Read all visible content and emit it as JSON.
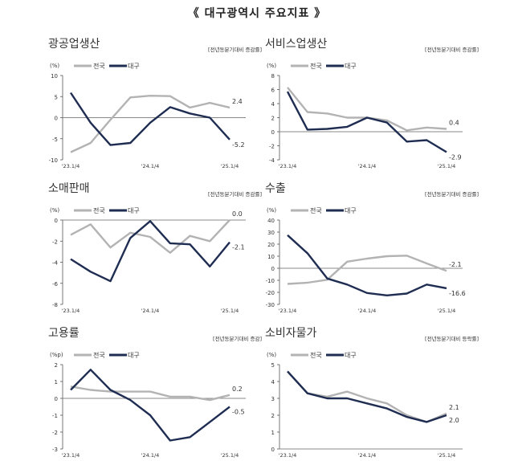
{
  "page_title": "《 대구광역시 주요지표 》",
  "colors": {
    "national": "#b3b3b3",
    "daegu": "#1f2d52",
    "zero_line": "#888888",
    "axis": "#555555"
  },
  "chart_data": [
    {
      "type": "line",
      "title": "광공업생산",
      "note": "[전년동분기대비 증감률]",
      "unit": "(%)",
      "ylim": [
        -10,
        10
      ],
      "yticks": [
        -10,
        -5,
        0,
        5,
        10
      ],
      "x_tick_labels": [
        "'23.1/4",
        "'24.1/4",
        "'25.1/4"
      ],
      "x_tick_index": [
        0,
        4,
        8
      ],
      "n_points": 9,
      "legend": [
        "전국",
        "대구"
      ],
      "series": [
        {
          "name": "전국",
          "values": [
            -8.2,
            -6.0,
            -0.5,
            4.8,
            5.2,
            5.1,
            2.4,
            3.5,
            2.4
          ],
          "end_label": "2.4"
        },
        {
          "name": "대구",
          "values": [
            5.9,
            -1.2,
            -6.5,
            -6.0,
            -1.2,
            2.5,
            1.0,
            0.0,
            -5.2
          ],
          "end_label": "-5.2"
        }
      ]
    },
    {
      "type": "line",
      "title": "서비스업생산",
      "note": "[전년동분기대비 증감률]",
      "unit": "(%)",
      "ylim": [
        -4,
        8
      ],
      "yticks": [
        -4,
        -2,
        0,
        2,
        4,
        6,
        8
      ],
      "x_tick_labels": [
        "'23.1/4",
        "'24.1/4",
        "'25.1/4"
      ],
      "x_tick_index": [
        0,
        4,
        8
      ],
      "n_points": 9,
      "legend": [
        "전국",
        "대구"
      ],
      "series": [
        {
          "name": "전국",
          "values": [
            6.3,
            2.8,
            2.6,
            2.0,
            2.0,
            1.6,
            0.2,
            0.6,
            0.4
          ],
          "end_label": "0.4"
        },
        {
          "name": "대구",
          "values": [
            5.7,
            0.3,
            0.4,
            0.7,
            2.0,
            1.3,
            -1.4,
            -1.2,
            -2.9
          ],
          "end_label": "-2.9"
        }
      ]
    },
    {
      "type": "line",
      "title": "소매판매",
      "note": "[전년동분기대비 증감률]",
      "unit": "(%)",
      "ylim": [
        -8,
        0
      ],
      "yticks": [
        -8,
        -6,
        -4,
        -2,
        0
      ],
      "x_tick_labels": [
        "'23.1/4",
        "'24.1/4",
        "'25.1/4"
      ],
      "x_tick_index": [
        0,
        4,
        8
      ],
      "n_points": 9,
      "legend": [
        "전국",
        "대구"
      ],
      "series": [
        {
          "name": "전국",
          "values": [
            -1.4,
            -0.4,
            -2.6,
            -1.2,
            -1.6,
            -3.1,
            -1.5,
            -2.0,
            0.0
          ],
          "end_label": "0.0"
        },
        {
          "name": "대구",
          "values": [
            -3.7,
            -4.9,
            -5.8,
            -1.7,
            -0.1,
            -2.2,
            -2.3,
            -4.4,
            -2.1
          ],
          "end_label": "-2.1"
        }
      ]
    },
    {
      "type": "line",
      "title": "수출",
      "note": "[전년동분기대비 증감률]",
      "unit": "(%)",
      "ylim": [
        -30,
        40
      ],
      "yticks": [
        -30,
        -20,
        -10,
        0,
        10,
        20,
        30,
        40
      ],
      "x_tick_labels": [
        "'23.1/4",
        "'24.1/4",
        "'25.1/4"
      ],
      "x_tick_index": [
        0,
        4,
        8
      ],
      "n_points": 9,
      "legend": [
        "전국",
        "대구"
      ],
      "series": [
        {
          "name": "전국",
          "values": [
            -13.0,
            -12.0,
            -9.5,
            5.5,
            8.0,
            10.0,
            10.5,
            4.0,
            -2.1
          ],
          "end_label": "-2.1"
        },
        {
          "name": "대구",
          "values": [
            27.5,
            12.5,
            -8.5,
            -13.5,
            -20.5,
            -22.5,
            -21.0,
            -13.5,
            -16.6
          ],
          "end_label": "-16.6"
        }
      ]
    },
    {
      "type": "line",
      "title": "고용률",
      "note": "[전년동분기대비 증감]",
      "unit": "(%p)",
      "ylim": [
        -3,
        2
      ],
      "yticks": [
        -3,
        -2,
        -1,
        0,
        1,
        2
      ],
      "x_tick_labels": [
        "'23.1/4",
        "'24.1/4",
        "'25.1/4"
      ],
      "x_tick_index": [
        0,
        4,
        8
      ],
      "n_points": 9,
      "legend": [
        "전국",
        "대구"
      ],
      "series": [
        {
          "name": "전국",
          "values": [
            0.7,
            0.5,
            0.4,
            0.4,
            0.4,
            0.1,
            0.1,
            -0.1,
            0.2
          ],
          "end_label": "0.2"
        },
        {
          "name": "대구",
          "values": [
            0.5,
            1.7,
            0.5,
            -0.1,
            -1.0,
            -2.5,
            -2.3,
            -1.4,
            -0.5
          ],
          "end_label": "-0.5"
        }
      ]
    },
    {
      "type": "line",
      "title": "소비자물가",
      "note": "[전년동분기대비 등락률]",
      "unit": "(%)",
      "ylim": [
        0,
        5
      ],
      "yticks": [
        0,
        1,
        2,
        3,
        4,
        5
      ],
      "x_tick_labels": [
        "'23.1/4",
        "'24.1/4",
        "'25.1/4"
      ],
      "x_tick_index": [
        0,
        4,
        8
      ],
      "n_points": 9,
      "legend": [
        "전국",
        "대구"
      ],
      "series": [
        {
          "name": "전국",
          "values": [
            4.6,
            3.3,
            3.1,
            3.4,
            3.0,
            2.7,
            2.0,
            1.6,
            2.1
          ],
          "end_label": "2.1"
        },
        {
          "name": "대구",
          "values": [
            4.6,
            3.3,
            3.0,
            3.0,
            2.7,
            2.4,
            1.9,
            1.6,
            2.0
          ],
          "end_label": "2.0"
        }
      ]
    }
  ]
}
